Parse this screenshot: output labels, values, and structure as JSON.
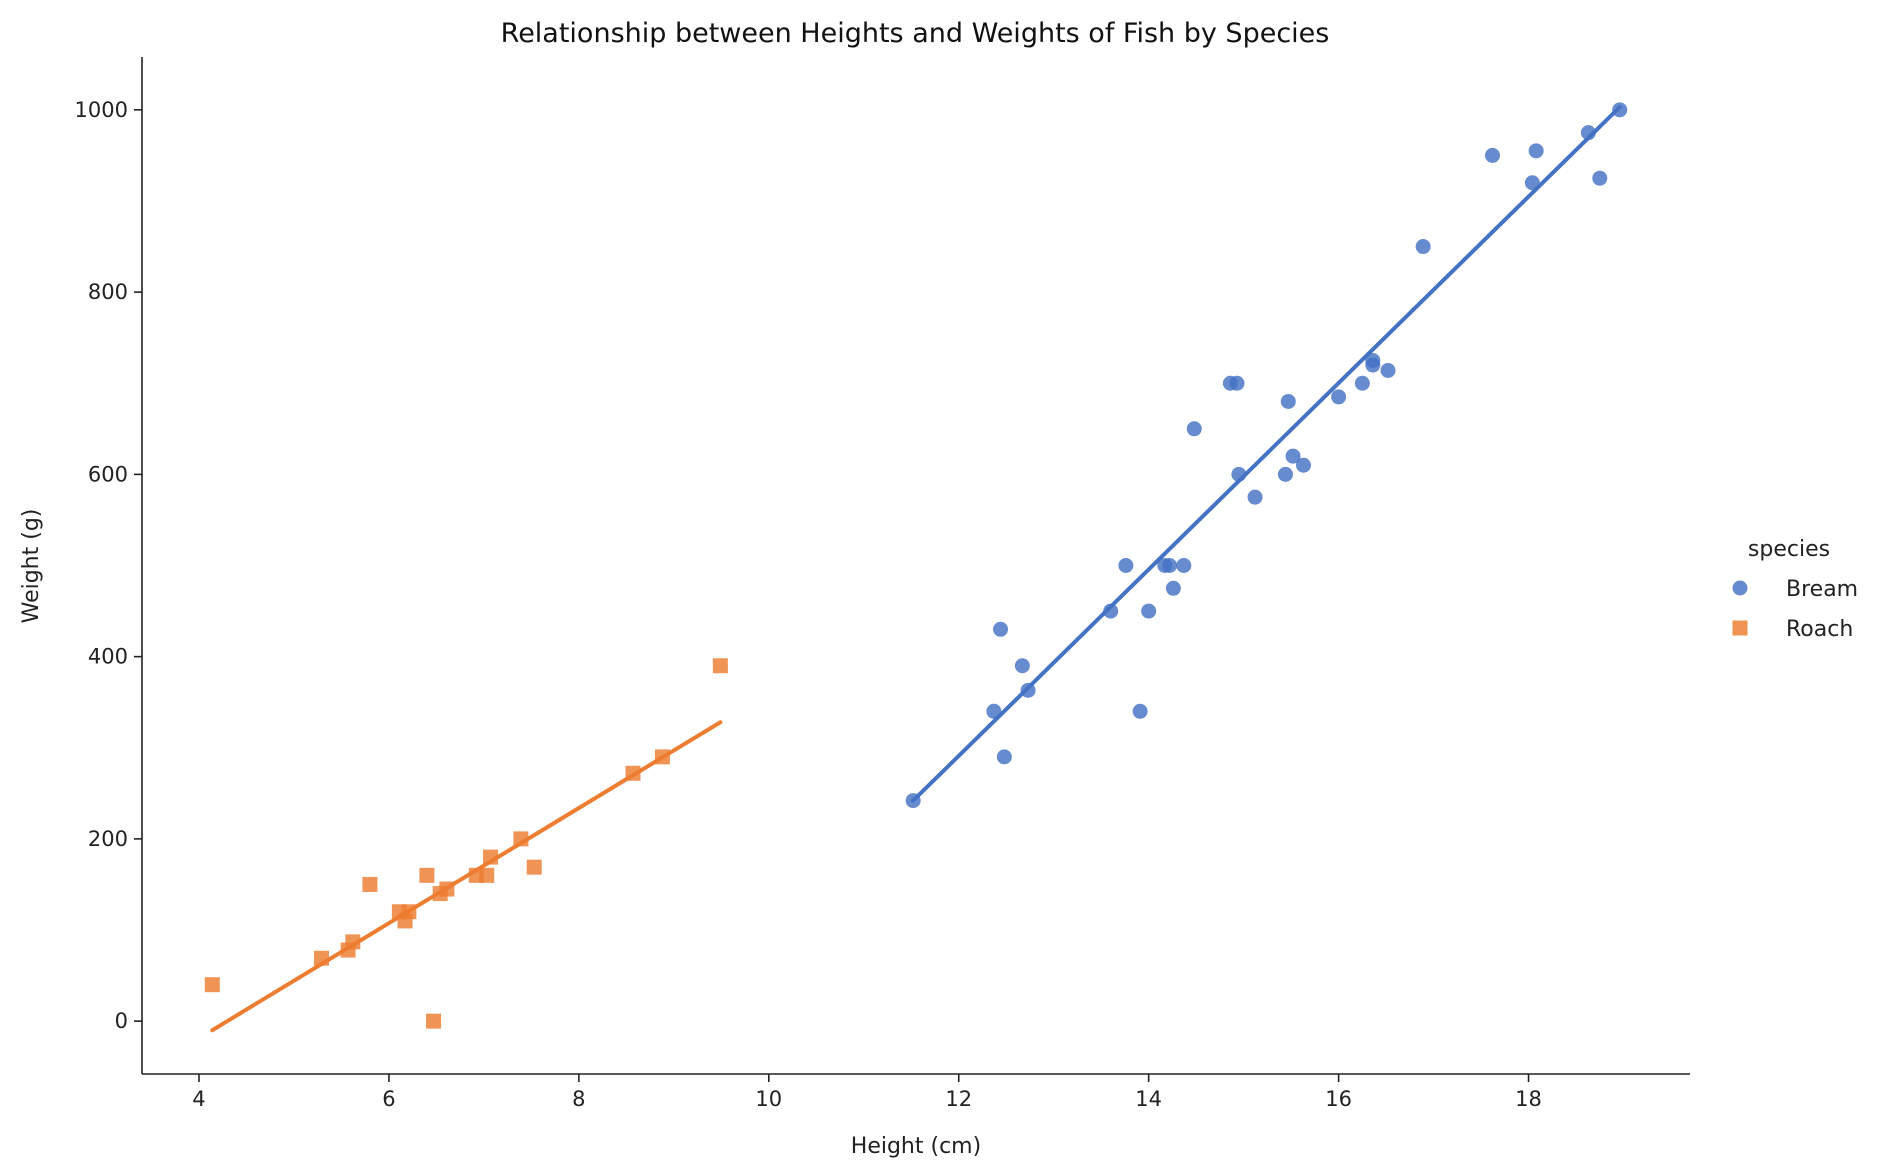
{
  "chart_data": {
    "type": "scatter",
    "title": "Relationship between Heights and Weights of Fish by Species",
    "xlabel": "Height (cm)",
    "ylabel": "Weight (g)",
    "xlim": [
      3.4,
      19.7
    ],
    "ylim": [
      -58,
      1058
    ],
    "xticks": [
      4,
      6,
      8,
      10,
      12,
      14,
      16,
      18
    ],
    "yticks": [
      0,
      200,
      400,
      600,
      800,
      1000
    ],
    "grid": false,
    "legend": {
      "title": "species",
      "placement": "right"
    },
    "series": [
      {
        "name": "Bream",
        "color": "#4472C4",
        "marker": "circle",
        "points": [
          [
            11.52,
            242
          ],
          [
            12.37,
            340
          ],
          [
            12.44,
            430
          ],
          [
            12.48,
            290
          ],
          [
            12.67,
            390
          ],
          [
            12.73,
            363
          ],
          [
            13.6,
            450
          ],
          [
            13.76,
            500
          ],
          [
            13.91,
            340
          ],
          [
            14.0,
            450
          ],
          [
            14.17,
            500
          ],
          [
            14.22,
            500
          ],
          [
            14.26,
            475
          ],
          [
            14.37,
            500
          ],
          [
            14.48,
            650
          ],
          [
            14.86,
            700
          ],
          [
            14.93,
            700
          ],
          [
            14.95,
            600
          ],
          [
            15.12,
            575
          ],
          [
            15.44,
            600
          ],
          [
            15.47,
            680
          ],
          [
            15.52,
            620
          ],
          [
            15.63,
            610
          ],
          [
            16.0,
            685
          ],
          [
            16.25,
            700
          ],
          [
            16.36,
            725
          ],
          [
            16.36,
            720
          ],
          [
            16.52,
            714
          ],
          [
            16.89,
            850
          ],
          [
            17.62,
            950
          ],
          [
            18.04,
            920
          ],
          [
            18.08,
            955
          ],
          [
            18.63,
            975
          ],
          [
            18.75,
            925
          ],
          [
            18.96,
            1000
          ]
        ],
        "fit": [
          [
            11.52,
            242
          ],
          [
            18.96,
            1003
          ]
        ]
      },
      {
        "name": "Roach",
        "color": "#ED7D31",
        "marker": "square",
        "points": [
          [
            4.14,
            40
          ],
          [
            5.29,
            69
          ],
          [
            5.57,
            78
          ],
          [
            5.62,
            87
          ],
          [
            5.8,
            150
          ],
          [
            6.11,
            120
          ],
          [
            6.17,
            110
          ],
          [
            6.21,
            120
          ],
          [
            6.4,
            160
          ],
          [
            6.47,
            0
          ],
          [
            6.54,
            140
          ],
          [
            6.61,
            145
          ],
          [
            6.92,
            160
          ],
          [
            7.03,
            160
          ],
          [
            7.07,
            180
          ],
          [
            7.39,
            200
          ],
          [
            7.53,
            169
          ],
          [
            8.57,
            272
          ],
          [
            8.88,
            290
          ],
          [
            9.49,
            390
          ]
        ],
        "fit": [
          [
            4.14,
            -10
          ],
          [
            9.49,
            328
          ]
        ]
      }
    ]
  }
}
